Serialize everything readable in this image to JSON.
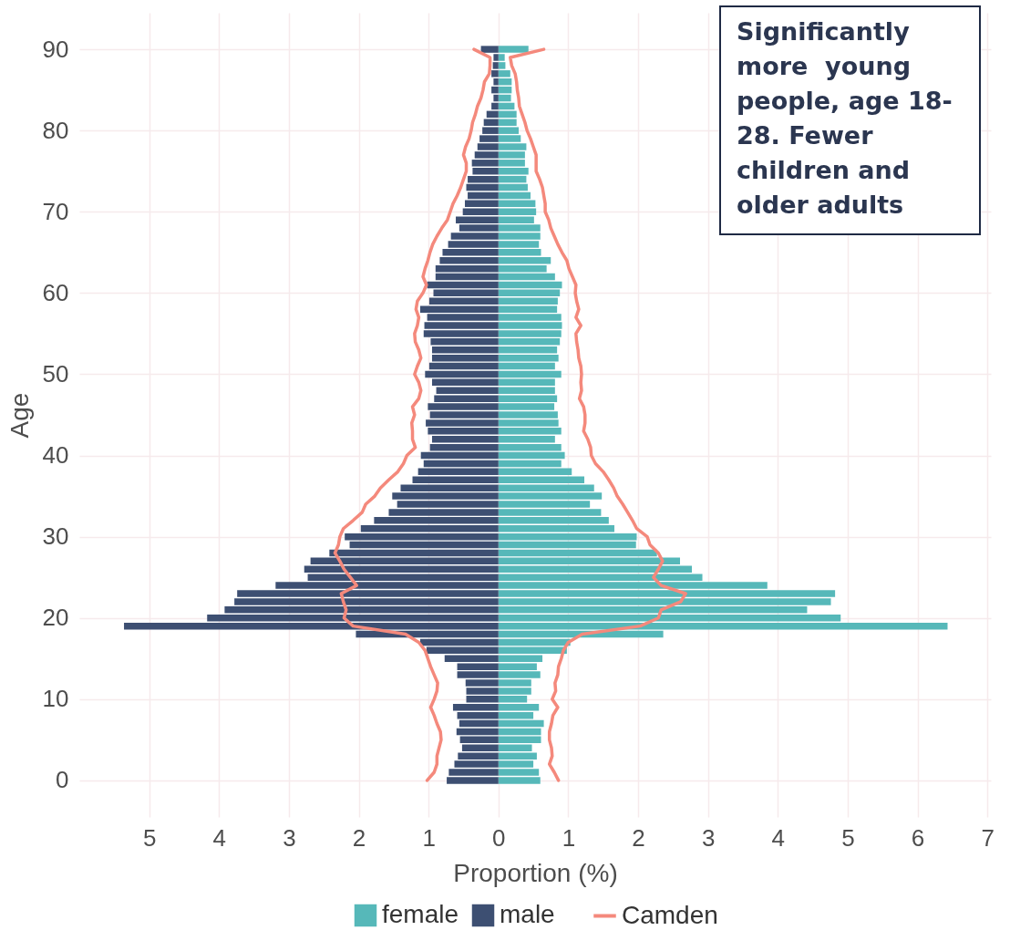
{
  "chart_data": {
    "type": "bar",
    "orientation": "horizontal",
    "stacked": true,
    "xlabel": "Proportion (%)",
    "ylabel": "Age",
    "x": [
      0,
      1,
      2,
      3,
      4,
      5,
      6,
      7,
      8,
      9,
      10,
      11,
      12,
      13,
      14,
      15,
      16,
      17,
      18,
      19,
      20,
      21,
      22,
      23,
      24,
      25,
      26,
      27,
      28,
      29,
      30,
      31,
      32,
      33,
      34,
      35,
      36,
      37,
      38,
      39,
      40,
      41,
      42,
      43,
      44,
      45,
      46,
      47,
      48,
      49,
      50,
      51,
      52,
      53,
      54,
      55,
      56,
      57,
      58,
      59,
      60,
      61,
      62,
      63,
      64,
      65,
      66,
      67,
      68,
      69,
      70,
      71,
      72,
      73,
      74,
      75,
      76,
      77,
      78,
      79,
      80,
      81,
      82,
      83,
      84,
      85,
      86,
      87,
      88,
      89,
      90
    ],
    "series": [
      {
        "name": "female",
        "color": "#56b8b9",
        "values": [
          0.6,
          0.58,
          0.5,
          0.55,
          0.48,
          0.61,
          0.61,
          0.65,
          0.5,
          0.58,
          0.41,
          0.47,
          0.47,
          0.6,
          0.55,
          0.63,
          0.98,
          1.03,
          2.36,
          6.43,
          4.9,
          4.42,
          4.76,
          4.82,
          3.85,
          2.92,
          2.77,
          2.6,
          2.27,
          1.97,
          1.98,
          1.66,
          1.58,
          1.47,
          1.31,
          1.48,
          1.37,
          1.23,
          1.05,
          0.9,
          0.95,
          0.9,
          0.81,
          0.9,
          0.86,
          0.85,
          0.8,
          0.84,
          0.81,
          0.81,
          0.9,
          0.81,
          0.86,
          0.84,
          0.88,
          0.9,
          0.91,
          0.9,
          0.84,
          0.85,
          0.88,
          0.91,
          0.81,
          0.69,
          0.75,
          0.61,
          0.58,
          0.6,
          0.6,
          0.51,
          0.54,
          0.53,
          0.46,
          0.42,
          0.4,
          0.43,
          0.38,
          0.38,
          0.4,
          0.32,
          0.29,
          0.26,
          0.26,
          0.23,
          0.18,
          0.19,
          0.19,
          0.17,
          0.1,
          0.09,
          0.43
        ]
      },
      {
        "name": "male",
        "color": "#3d4f72",
        "values": [
          -0.74,
          -0.71,
          -0.63,
          -0.58,
          -0.52,
          -0.55,
          -0.6,
          -0.56,
          -0.59,
          -0.65,
          -0.46,
          -0.46,
          -0.47,
          -0.59,
          -0.59,
          -0.77,
          -1.03,
          -1.12,
          -2.04,
          -5.36,
          -4.17,
          -3.92,
          -3.78,
          -3.74,
          -3.19,
          -2.73,
          -2.78,
          -2.69,
          -2.42,
          -2.13,
          -2.2,
          -1.97,
          -1.78,
          -1.57,
          -1.45,
          -1.52,
          -1.4,
          -1.23,
          -1.15,
          -1.07,
          -1.11,
          -0.98,
          -0.95,
          -1.01,
          -1.04,
          -0.98,
          -1.01,
          -0.92,
          -0.89,
          -0.95,
          -1.05,
          -0.99,
          -0.95,
          -0.95,
          -0.97,
          -1.07,
          -1.06,
          -1.02,
          -1.12,
          -0.99,
          -0.93,
          -1.02,
          -0.9,
          -0.9,
          -0.84,
          -0.8,
          -0.72,
          -0.68,
          -0.56,
          -0.61,
          -0.51,
          -0.48,
          -0.44,
          -0.46,
          -0.44,
          -0.37,
          -0.38,
          -0.34,
          -0.3,
          -0.27,
          -0.23,
          -0.21,
          -0.17,
          -0.1,
          -0.07,
          -0.1,
          -0.07,
          -0.1,
          -0.08,
          -0.07,
          -0.25
        ]
      },
      {
        "name": "Camden",
        "type": "line",
        "color": "#f4897c",
        "values": [
          0.86,
          0.8,
          0.73,
          0.77,
          0.76,
          0.73,
          0.73,
          0.76,
          0.78,
          0.85,
          0.77,
          0.82,
          0.81,
          0.85,
          0.86,
          0.9,
          0.93,
          1.0,
          1.2,
          2.03,
          2.29,
          2.33,
          2.61,
          2.68,
          2.33,
          2.22,
          2.29,
          2.35,
          2.29,
          2.17,
          2.13,
          1.98,
          1.92,
          1.85,
          1.78,
          1.7,
          1.65,
          1.58,
          1.5,
          1.39,
          1.33,
          1.32,
          1.28,
          1.22,
          1.24,
          1.24,
          1.22,
          1.16,
          1.19,
          1.18,
          1.19,
          1.18,
          1.15,
          1.14,
          1.12,
          1.11,
          1.18,
          1.11,
          1.15,
          1.12,
          1.1,
          1.11,
          1.06,
          1.01,
          0.98,
          0.91,
          0.85,
          0.8,
          0.75,
          0.72,
          0.67,
          0.67,
          0.65,
          0.63,
          0.59,
          0.54,
          0.54,
          0.54,
          0.5,
          0.46,
          0.41,
          0.38,
          0.34,
          0.3,
          0.29,
          0.27,
          0.26,
          0.24,
          0.19,
          0.17,
          0.65
        ]
      },
      {
        "type": "line",
        "color": "#f4897c",
        "values": [
          -1.02,
          -0.92,
          -0.88,
          -0.88,
          -0.85,
          -0.82,
          -0.83,
          -0.88,
          -0.92,
          -0.97,
          -0.92,
          -0.88,
          -0.87,
          -0.92,
          -0.97,
          -1.01,
          -1.05,
          -1.14,
          -1.33,
          -2.08,
          -2.21,
          -2.18,
          -2.22,
          -2.25,
          -2.03,
          -2.12,
          -2.21,
          -2.27,
          -2.34,
          -2.29,
          -2.27,
          -2.22,
          -2.08,
          -1.95,
          -1.9,
          -1.77,
          -1.69,
          -1.57,
          -1.44,
          -1.36,
          -1.31,
          -1.19,
          -1.23,
          -1.23,
          -1.24,
          -1.2,
          -1.23,
          -1.14,
          -1.11,
          -1.14,
          -1.2,
          -1.16,
          -1.11,
          -1.14,
          -1.19,
          -1.2,
          -1.16,
          -1.14,
          -1.18,
          -1.16,
          -1.08,
          -1.03,
          -1.08,
          -1.05,
          -1.01,
          -0.98,
          -0.94,
          -0.88,
          -0.81,
          -0.73,
          -0.69,
          -0.65,
          -0.59,
          -0.54,
          -0.5,
          -0.46,
          -0.46,
          -0.5,
          -0.47,
          -0.42,
          -0.39,
          -0.37,
          -0.33,
          -0.3,
          -0.25,
          -0.22,
          -0.2,
          -0.13,
          -0.12,
          -0.12,
          -0.35
        ]
      }
    ],
    "xlim": [
      -6,
      7.05
    ],
    "xticks": [
      {
        "value": -5,
        "label": "5"
      },
      {
        "value": -4,
        "label": "4"
      },
      {
        "value": -3,
        "label": "3"
      },
      {
        "value": -2,
        "label": "2"
      },
      {
        "value": -1,
        "label": "1"
      },
      0,
      1,
      2,
      3,
      4,
      5,
      6,
      7
    ],
    "ylim": [
      -4.5,
      94.5
    ],
    "yticks": [
      0,
      10,
      20,
      30,
      40,
      50,
      60,
      70,
      80,
      90
    ],
    "grid": true,
    "legend": "bottom",
    "annotations": [
      "Significantly more  young people, age 18-28. Fewer children and older adults"
    ]
  }
}
